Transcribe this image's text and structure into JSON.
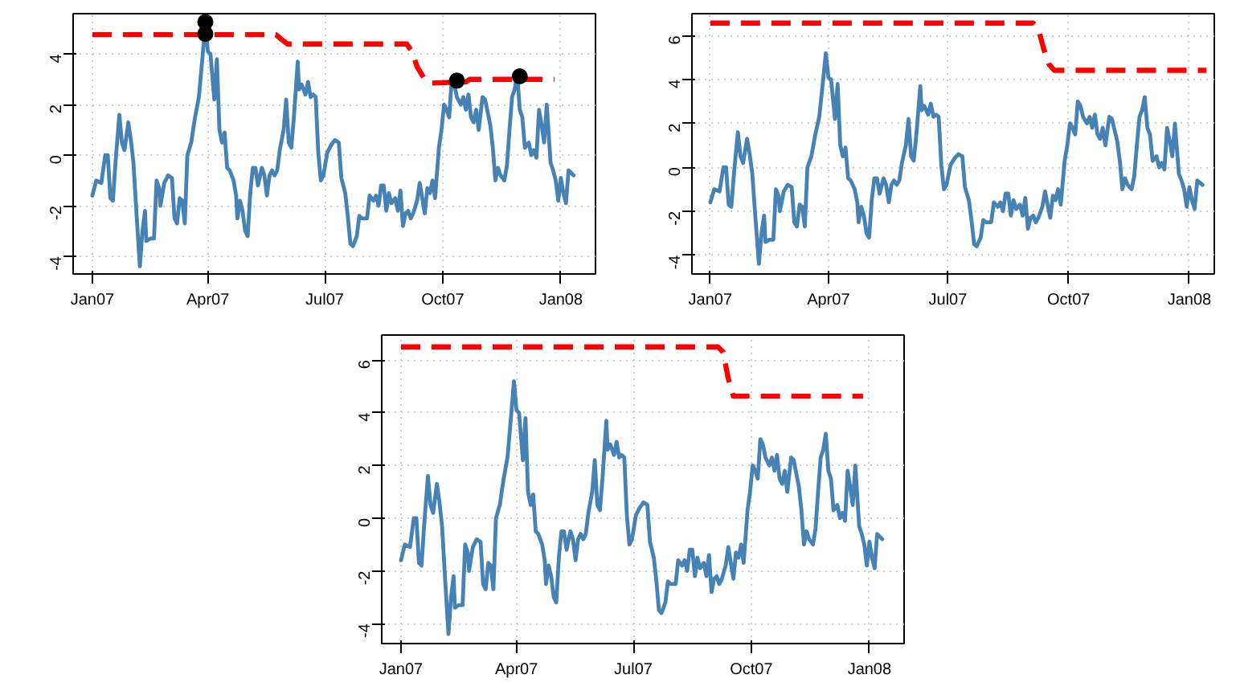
{
  "chart_data": [
    {
      "type": "line",
      "line_style": "solid",
      "grid": true,
      "x": [
        "2007-01-01",
        "2007-01-04",
        "2007-01-08",
        "2007-01-11",
        "2007-01-13",
        "2007-01-15",
        "2007-01-17",
        "2007-01-19",
        "2007-01-22",
        "2007-01-24",
        "2007-01-26",
        "2007-01-29",
        "2007-01-31",
        "2007-02-02",
        "2007-02-04",
        "2007-02-07",
        "2007-02-09",
        "2007-02-11",
        "2007-02-12",
        "2007-02-15",
        "2007-02-18",
        "2007-02-20",
        "2007-02-22",
        "2007-02-23",
        "2007-02-26",
        "2007-03-01",
        "2007-03-04",
        "2007-03-06",
        "2007-03-08",
        "2007-03-10",
        "2007-03-12",
        "2007-03-14",
        "2007-03-16",
        "2007-03-19",
        "2007-03-22",
        "2007-03-25",
        "2007-03-28",
        "2007-03-30",
        "2007-04-01",
        "2007-04-03",
        "2007-04-04",
        "2007-04-06",
        "2007-04-08",
        "2007-04-10",
        "2007-04-12",
        "2007-04-14",
        "2007-04-16",
        "2007-04-18",
        "2007-04-21",
        "2007-04-23",
        "2007-04-24",
        "2007-04-26",
        "2007-04-28",
        "2007-04-30",
        "2007-05-02",
        "2007-05-04",
        "2007-05-06",
        "2007-05-08",
        "2007-05-10",
        "2007-05-13",
        "2007-05-15",
        "2007-05-17",
        "2007-05-19",
        "2007-05-21",
        "2007-05-23",
        "2007-05-25",
        "2007-05-27",
        "2007-05-30",
        "2007-06-01",
        "2007-06-03",
        "2007-06-05",
        "2007-06-07",
        "2007-06-10",
        "2007-06-11",
        "2007-06-13",
        "2007-06-16",
        "2007-06-18",
        "2007-06-20",
        "2007-06-22",
        "2007-06-24",
        "2007-06-26",
        "2007-06-28",
        "2007-06-30",
        "2007-07-03",
        "2007-07-06",
        "2007-07-09",
        "2007-07-12",
        "2007-07-14",
        "2007-07-17",
        "2007-07-19",
        "2007-07-21",
        "2007-07-23",
        "2007-07-26",
        "2007-07-28",
        "2007-07-30",
        "2007-08-01",
        "2007-08-03",
        "2007-08-05",
        "2007-08-08",
        "2007-08-10",
        "2007-08-12",
        "2007-08-14",
        "2007-08-16",
        "2007-08-18",
        "2007-08-20",
        "2007-08-22",
        "2007-08-25",
        "2007-08-27",
        "2007-08-29",
        "2007-08-31",
        "2007-09-02",
        "2007-09-04",
        "2007-09-06",
        "2007-09-08",
        "2007-09-11",
        "2007-09-13",
        "2007-09-15",
        "2007-09-17",
        "2007-09-19",
        "2007-09-21",
        "2007-09-23",
        "2007-09-25",
        "2007-09-28",
        "2007-09-30",
        "2007-10-02",
        "2007-10-04",
        "2007-10-06",
        "2007-10-08",
        "2007-10-10",
        "2007-10-12",
        "2007-10-15",
        "2007-10-17",
        "2007-10-19",
        "2007-10-21",
        "2007-10-23",
        "2007-10-25",
        "2007-10-27",
        "2007-10-29",
        "2007-11-01",
        "2007-11-03",
        "2007-11-05",
        "2007-11-07",
        "2007-11-09",
        "2007-11-11",
        "2007-11-13",
        "2007-11-15",
        "2007-11-18",
        "2007-11-20",
        "2007-11-22",
        "2007-11-24",
        "2007-11-26",
        "2007-11-28",
        "2007-11-30",
        "2007-12-02",
        "2007-12-04",
        "2007-12-07",
        "2007-12-09",
        "2007-12-11",
        "2007-12-13",
        "2007-12-15",
        "2007-12-17",
        "2007-12-19",
        "2007-12-21",
        "2007-12-24",
        "2007-12-26",
        "2007-12-28",
        "2007-12-30",
        "2008-01-01",
        "2008-01-03",
        "2008-01-05",
        "2008-01-07",
        "2008-01-11"
      ],
      "series": [
        {
          "color": "#4682b4",
          "values": [
            -1.6,
            -1.0,
            -1.1,
            0.0,
            0.0,
            -1.7,
            -1.8,
            -0.3,
            1.6,
            0.5,
            0.2,
            1.3,
            0.6,
            -0.3,
            -2.0,
            -4.4,
            -3.0,
            -2.2,
            -3.4,
            -3.3,
            -3.3,
            -1.0,
            -1.3,
            -2.0,
            -1.1,
            -0.8,
            -0.9,
            -2.5,
            -2.7,
            -1.7,
            -1.8,
            -2.7,
            0.0,
            0.5,
            1.5,
            2.3,
            4.0,
            5.2,
            4.1,
            4.0,
            3.4,
            2.2,
            3.8,
            1.0,
            0.5,
            0.9,
            -0.5,
            -0.6,
            -1.0,
            -1.6,
            -2.5,
            -1.8,
            -2.2,
            -3.0,
            -3.2,
            -1.5,
            -0.5,
            -0.5,
            -1.2,
            -0.5,
            -0.8,
            -1.6,
            -0.8,
            -0.6,
            -0.8,
            -0.6,
            0.2,
            1.0,
            2.2,
            0.5,
            0.3,
            1.5,
            3.7,
            2.6,
            2.8,
            2.4,
            2.9,
            2.3,
            2.4,
            2.3,
            0.1,
            -1.0,
            -0.8,
            0.1,
            0.4,
            0.6,
            0.5,
            -0.9,
            -1.5,
            -2.4,
            -3.5,
            -3.6,
            -3.2,
            -2.4,
            -2.5,
            -2.5,
            -2.5,
            -1.6,
            -1.8,
            -1.6,
            -2.0,
            -1.2,
            -1.2,
            -2.2,
            -1.5,
            -1.9,
            -1.7,
            -2.2,
            -1.4,
            -2.8,
            -2.3,
            -2.2,
            -2.5,
            -2.3,
            -1.8,
            -1.1,
            -1.7,
            -2.3,
            -1.3,
            -1.5,
            -1.0,
            -1.7,
            0.3,
            1.0,
            2.0,
            1.8,
            1.5,
            3.0,
            2.8,
            2.3,
            2.0,
            2.3,
            1.8,
            2.4,
            1.5,
            1.3,
            1.8,
            1.0,
            2.3,
            2.2,
            1.7,
            1.2,
            0.3,
            -1.0,
            -0.5,
            -0.8,
            -1.0,
            -0.4,
            1.0,
            2.3,
            2.6,
            3.2,
            1.8,
            1.5,
            0.3,
            0.5,
            0.0,
            0.2,
            -0.1,
            1.8,
            1.2,
            0.5,
            2.0,
            -0.3,
            -0.6,
            -1.0,
            -1.8,
            -0.9,
            -1.5,
            -1.9,
            -0.6,
            -0.8
          ]
        },
        {
          "color": "#ff0000",
          "line_style": "dashed",
          "x": [
            "2007-01-01",
            "2007-05-24",
            "2007-05-28",
            "2007-06-02",
            "2007-09-03",
            "2007-09-07",
            "2007-09-11",
            "2007-09-17",
            "2007-09-21",
            "2007-10-19",
            "2007-10-22",
            "2007-12-27"
          ],
          "values": [
            4.77,
            4.77,
            4.6,
            4.4,
            4.4,
            4.1,
            3.5,
            3.0,
            2.85,
            2.9,
            3.0,
            3.0
          ]
        },
        {
          "type": "scatter",
          "marker": "circle",
          "color": "#000000",
          "x": [
            "2007-03-30",
            "2007-03-30",
            "2007-10-12",
            "2007-11-30"
          ],
          "values": [
            5.27,
            4.8,
            2.95,
            3.12
          ]
        }
      ],
      "xlim": [
        "2006-12-17",
        "2008-01-28"
      ],
      "ylim": [
        -4.7,
        5.6
      ],
      "xticks": [
        {
          "value": "2007-01-01",
          "label": "Jan07"
        },
        {
          "value": "2007-04-01",
          "label": "Apr07"
        },
        {
          "value": "2007-07-01",
          "label": "Jul07"
        },
        {
          "value": "2007-10-01",
          "label": "Oct07"
        },
        {
          "value": "2008-01-01",
          "label": "Jan08"
        }
      ],
      "yticks": [
        -4,
        -2,
        0,
        2,
        4
      ]
    },
    {
      "type": "line",
      "line_style": "solid",
      "grid": true,
      "x": [
        "2007-01-01",
        "2007-01-04",
        "2007-01-08",
        "2007-01-11",
        "2007-01-13",
        "2007-01-15",
        "2007-01-17",
        "2007-01-19",
        "2007-01-22",
        "2007-01-24",
        "2007-01-26",
        "2007-01-29",
        "2007-01-31",
        "2007-02-02",
        "2007-02-04",
        "2007-02-07",
        "2007-02-09",
        "2007-02-11",
        "2007-02-12",
        "2007-02-15",
        "2007-02-18",
        "2007-02-20",
        "2007-02-22",
        "2007-02-23",
        "2007-02-26",
        "2007-03-01",
        "2007-03-04",
        "2007-03-06",
        "2007-03-08",
        "2007-03-10",
        "2007-03-12",
        "2007-03-14",
        "2007-03-16",
        "2007-03-19",
        "2007-03-22",
        "2007-03-25",
        "2007-03-28",
        "2007-03-30",
        "2007-04-01",
        "2007-04-03",
        "2007-04-04",
        "2007-04-06",
        "2007-04-08",
        "2007-04-10",
        "2007-04-12",
        "2007-04-14",
        "2007-04-16",
        "2007-04-18",
        "2007-04-21",
        "2007-04-23",
        "2007-04-24",
        "2007-04-26",
        "2007-04-28",
        "2007-04-30",
        "2007-05-02",
        "2007-05-04",
        "2007-05-06",
        "2007-05-08",
        "2007-05-10",
        "2007-05-13",
        "2007-05-15",
        "2007-05-17",
        "2007-05-19",
        "2007-05-21",
        "2007-05-23",
        "2007-05-25",
        "2007-05-27",
        "2007-05-30",
        "2007-06-01",
        "2007-06-03",
        "2007-06-05",
        "2007-06-07",
        "2007-06-10",
        "2007-06-11",
        "2007-06-13",
        "2007-06-16",
        "2007-06-18",
        "2007-06-20",
        "2007-06-22",
        "2007-06-24",
        "2007-06-26",
        "2007-06-28",
        "2007-06-30",
        "2007-07-03",
        "2007-07-06",
        "2007-07-09",
        "2007-07-12",
        "2007-07-14",
        "2007-07-17",
        "2007-07-19",
        "2007-07-21",
        "2007-07-23",
        "2007-07-26",
        "2007-07-28",
        "2007-07-30",
        "2007-08-01",
        "2007-08-03",
        "2007-08-05",
        "2007-08-08",
        "2007-08-10",
        "2007-08-12",
        "2007-08-14",
        "2007-08-16",
        "2007-08-18",
        "2007-08-20",
        "2007-08-22",
        "2007-08-25",
        "2007-08-27",
        "2007-08-29",
        "2007-08-31",
        "2007-09-02",
        "2007-09-04",
        "2007-09-06",
        "2007-09-08",
        "2007-09-11",
        "2007-09-13",
        "2007-09-15",
        "2007-09-17",
        "2007-09-19",
        "2007-09-21",
        "2007-09-23",
        "2007-09-25",
        "2007-09-28",
        "2007-09-30",
        "2007-10-02",
        "2007-10-04",
        "2007-10-06",
        "2007-10-08",
        "2007-10-10",
        "2007-10-12",
        "2007-10-15",
        "2007-10-17",
        "2007-10-19",
        "2007-10-21",
        "2007-10-23",
        "2007-10-25",
        "2007-10-27",
        "2007-10-29",
        "2007-11-01",
        "2007-11-03",
        "2007-11-05",
        "2007-11-07",
        "2007-11-09",
        "2007-11-11",
        "2007-11-13",
        "2007-11-15",
        "2007-11-18",
        "2007-11-20",
        "2007-11-22",
        "2007-11-24",
        "2007-11-26",
        "2007-11-28",
        "2007-11-30",
        "2007-12-02",
        "2007-12-04",
        "2007-12-07",
        "2007-12-09",
        "2007-12-11",
        "2007-12-13",
        "2007-12-15",
        "2007-12-17",
        "2007-12-19",
        "2007-12-21",
        "2007-12-24",
        "2007-12-26",
        "2007-12-28",
        "2007-12-30",
        "2008-01-01",
        "2008-01-03",
        "2008-01-05",
        "2008-01-07",
        "2008-01-11"
      ],
      "series": [
        {
          "color": "#4682b4",
          "values": [
            -1.6,
            -1.0,
            -1.1,
            0.0,
            0.0,
            -1.7,
            -1.8,
            -0.3,
            1.6,
            0.5,
            0.2,
            1.3,
            0.6,
            -0.3,
            -2.0,
            -4.4,
            -3.0,
            -2.2,
            -3.4,
            -3.3,
            -3.3,
            -1.0,
            -1.3,
            -2.0,
            -1.1,
            -0.8,
            -0.9,
            -2.5,
            -2.7,
            -1.7,
            -1.8,
            -2.7,
            0.0,
            0.5,
            1.5,
            2.3,
            4.0,
            5.2,
            4.1,
            4.0,
            3.4,
            2.2,
            3.8,
            1.0,
            0.5,
            0.9,
            -0.5,
            -0.6,
            -1.0,
            -1.6,
            -2.5,
            -1.8,
            -2.2,
            -3.0,
            -3.2,
            -1.5,
            -0.5,
            -0.5,
            -1.2,
            -0.5,
            -0.8,
            -1.6,
            -0.8,
            -0.6,
            -0.8,
            -0.6,
            0.2,
            1.0,
            2.2,
            0.5,
            0.3,
            1.5,
            3.7,
            2.6,
            2.8,
            2.4,
            2.9,
            2.3,
            2.4,
            2.3,
            0.1,
            -1.0,
            -0.8,
            0.1,
            0.4,
            0.6,
            0.5,
            -0.9,
            -1.5,
            -2.4,
            -3.5,
            -3.6,
            -3.2,
            -2.4,
            -2.5,
            -2.5,
            -2.5,
            -1.6,
            -1.8,
            -1.6,
            -2.0,
            -1.2,
            -1.2,
            -2.2,
            -1.5,
            -1.9,
            -1.7,
            -2.2,
            -1.4,
            -2.8,
            -2.3,
            -2.2,
            -2.5,
            -2.3,
            -1.8,
            -1.1,
            -1.7,
            -2.3,
            -1.3,
            -1.5,
            -1.0,
            -1.7,
            0.3,
            1.0,
            2.0,
            1.8,
            1.5,
            3.0,
            2.8,
            2.3,
            2.0,
            2.3,
            1.8,
            2.4,
            1.5,
            1.3,
            1.8,
            1.0,
            2.3,
            2.2,
            1.7,
            1.2,
            0.3,
            -1.0,
            -0.5,
            -0.8,
            -1.0,
            -0.4,
            1.0,
            2.3,
            2.6,
            3.2,
            1.8,
            1.5,
            0.3,
            0.5,
            0.0,
            0.2,
            -0.1,
            1.8,
            1.2,
            0.5,
            2.0,
            -0.3,
            -0.6,
            -1.0,
            -1.8,
            -0.9,
            -1.5,
            -1.9,
            -0.6,
            -0.8
          ]
        },
        {
          "color": "#ff0000",
          "line_style": "dashed",
          "x": [
            "2007-01-01",
            "2007-09-04",
            "2007-09-08",
            "2007-09-12",
            "2007-09-16",
            "2007-09-20",
            "2008-01-14"
          ],
          "values": [
            6.57,
            6.57,
            6.3,
            5.4,
            4.7,
            4.42,
            4.42
          ]
        }
      ],
      "xlim": [
        "2006-12-18",
        "2008-01-20"
      ],
      "ylim": [
        -4.86,
        7.0
      ],
      "xticks": [
        {
          "value": "2007-01-01",
          "label": "Jan07"
        },
        {
          "value": "2007-04-01",
          "label": "Apr07"
        },
        {
          "value": "2007-07-01",
          "label": "Jul07"
        },
        {
          "value": "2007-10-01",
          "label": "Oct07"
        },
        {
          "value": "2008-01-01",
          "label": "Jan08"
        }
      ],
      "yticks": [
        -4,
        -2,
        0,
        2,
        4,
        6
      ]
    },
    {
      "type": "line",
      "line_style": "solid",
      "grid": true,
      "x": [
        "2007-01-01",
        "2007-01-04",
        "2007-01-08",
        "2007-01-11",
        "2007-01-13",
        "2007-01-15",
        "2007-01-17",
        "2007-01-19",
        "2007-01-22",
        "2007-01-24",
        "2007-01-26",
        "2007-01-29",
        "2007-01-31",
        "2007-02-02",
        "2007-02-04",
        "2007-02-07",
        "2007-02-09",
        "2007-02-11",
        "2007-02-12",
        "2007-02-15",
        "2007-02-18",
        "2007-02-20",
        "2007-02-22",
        "2007-02-23",
        "2007-02-26",
        "2007-03-01",
        "2007-03-04",
        "2007-03-06",
        "2007-03-08",
        "2007-03-10",
        "2007-03-12",
        "2007-03-14",
        "2007-03-16",
        "2007-03-19",
        "2007-03-22",
        "2007-03-25",
        "2007-03-28",
        "2007-03-30",
        "2007-04-01",
        "2007-04-03",
        "2007-04-04",
        "2007-04-06",
        "2007-04-08",
        "2007-04-10",
        "2007-04-12",
        "2007-04-14",
        "2007-04-16",
        "2007-04-18",
        "2007-04-21",
        "2007-04-23",
        "2007-04-24",
        "2007-04-26",
        "2007-04-28",
        "2007-04-30",
        "2007-05-02",
        "2007-05-04",
        "2007-05-06",
        "2007-05-08",
        "2007-05-10",
        "2007-05-13",
        "2007-05-15",
        "2007-05-17",
        "2007-05-19",
        "2007-05-21",
        "2007-05-23",
        "2007-05-25",
        "2007-05-27",
        "2007-05-30",
        "2007-06-01",
        "2007-06-03",
        "2007-06-05",
        "2007-06-07",
        "2007-06-10",
        "2007-06-11",
        "2007-06-13",
        "2007-06-16",
        "2007-06-18",
        "2007-06-20",
        "2007-06-22",
        "2007-06-24",
        "2007-06-26",
        "2007-06-28",
        "2007-06-30",
        "2007-07-03",
        "2007-07-06",
        "2007-07-09",
        "2007-07-12",
        "2007-07-14",
        "2007-07-17",
        "2007-07-19",
        "2007-07-21",
        "2007-07-23",
        "2007-07-26",
        "2007-07-28",
        "2007-07-30",
        "2007-08-01",
        "2007-08-03",
        "2007-08-05",
        "2007-08-08",
        "2007-08-10",
        "2007-08-12",
        "2007-08-14",
        "2007-08-16",
        "2007-08-18",
        "2007-08-20",
        "2007-08-22",
        "2007-08-25",
        "2007-08-27",
        "2007-08-29",
        "2007-08-31",
        "2007-09-02",
        "2007-09-04",
        "2007-09-06",
        "2007-09-08",
        "2007-09-11",
        "2007-09-13",
        "2007-09-15",
        "2007-09-17",
        "2007-09-19",
        "2007-09-21",
        "2007-09-23",
        "2007-09-25",
        "2007-09-28",
        "2007-09-30",
        "2007-10-02",
        "2007-10-04",
        "2007-10-06",
        "2007-10-08",
        "2007-10-10",
        "2007-10-12",
        "2007-10-15",
        "2007-10-17",
        "2007-10-19",
        "2007-10-21",
        "2007-10-23",
        "2007-10-25",
        "2007-10-27",
        "2007-10-29",
        "2007-11-01",
        "2007-11-03",
        "2007-11-05",
        "2007-11-07",
        "2007-11-09",
        "2007-11-11",
        "2007-11-13",
        "2007-11-15",
        "2007-11-18",
        "2007-11-20",
        "2007-11-22",
        "2007-11-24",
        "2007-11-26",
        "2007-11-28",
        "2007-11-30",
        "2007-12-02",
        "2007-12-04",
        "2007-12-07",
        "2007-12-09",
        "2007-12-11",
        "2007-12-13",
        "2007-12-15",
        "2007-12-17",
        "2007-12-19",
        "2007-12-21",
        "2007-12-24",
        "2007-12-26",
        "2007-12-28",
        "2007-12-30",
        "2008-01-01",
        "2008-01-03",
        "2008-01-05",
        "2008-01-07",
        "2008-01-11"
      ],
      "series": [
        {
          "color": "#4682b4",
          "values": [
            -1.6,
            -1.0,
            -1.1,
            0.0,
            0.0,
            -1.7,
            -1.8,
            -0.3,
            1.6,
            0.5,
            0.2,
            1.3,
            0.6,
            -0.3,
            -2.0,
            -4.4,
            -3.0,
            -2.2,
            -3.4,
            -3.3,
            -3.3,
            -1.0,
            -1.3,
            -2.0,
            -1.1,
            -0.8,
            -0.9,
            -2.5,
            -2.7,
            -1.7,
            -1.8,
            -2.7,
            0.0,
            0.5,
            1.5,
            2.3,
            4.0,
            5.2,
            4.1,
            4.0,
            3.4,
            2.2,
            3.8,
            1.0,
            0.5,
            0.9,
            -0.5,
            -0.6,
            -1.0,
            -1.6,
            -2.5,
            -1.8,
            -2.2,
            -3.0,
            -3.2,
            -1.5,
            -0.5,
            -0.5,
            -1.2,
            -0.5,
            -0.8,
            -1.6,
            -0.8,
            -0.6,
            -0.8,
            -0.6,
            0.2,
            1.0,
            2.2,
            0.5,
            0.3,
            1.5,
            3.7,
            2.6,
            2.8,
            2.4,
            2.9,
            2.3,
            2.4,
            2.3,
            0.1,
            -1.0,
            -0.8,
            0.1,
            0.4,
            0.6,
            0.5,
            -0.9,
            -1.5,
            -2.4,
            -3.5,
            -3.6,
            -3.2,
            -2.4,
            -2.5,
            -2.5,
            -2.5,
            -1.6,
            -1.8,
            -1.6,
            -2.0,
            -1.2,
            -1.2,
            -2.2,
            -1.5,
            -1.9,
            -1.7,
            -2.2,
            -1.4,
            -2.8,
            -2.3,
            -2.2,
            -2.5,
            -2.3,
            -1.8,
            -1.1,
            -1.7,
            -2.3,
            -1.3,
            -1.5,
            -1.0,
            -1.7,
            0.3,
            1.0,
            2.0,
            1.8,
            1.5,
            3.0,
            2.8,
            2.3,
            2.0,
            2.3,
            1.8,
            2.4,
            1.5,
            1.3,
            1.8,
            1.0,
            2.3,
            2.2,
            1.7,
            1.2,
            0.3,
            -1.0,
            -0.5,
            -0.8,
            -1.0,
            -0.4,
            1.0,
            2.3,
            2.6,
            3.2,
            1.8,
            1.5,
            0.3,
            0.5,
            0.0,
            0.2,
            -0.1,
            1.8,
            1.2,
            0.5,
            2.0,
            -0.3,
            -0.6,
            -1.0,
            -1.8,
            -0.9,
            -1.5,
            -1.9,
            -0.6,
            -0.8
          ]
        },
        {
          "color": "#ff0000",
          "line_style": "dashed",
          "x": [
            "2007-01-01",
            "2007-09-05",
            "2007-09-09",
            "2007-09-13",
            "2007-09-17",
            "2007-12-27"
          ],
          "values": [
            6.5,
            6.5,
            6.3,
            5.3,
            4.63,
            4.63
          ]
        }
      ],
      "xlim": [
        "2006-12-17",
        "2008-01-28"
      ],
      "ylim": [
        -4.76,
        6.95
      ],
      "xticks": [
        {
          "value": "2007-01-01",
          "label": "Jan07"
        },
        {
          "value": "2007-04-01",
          "label": "Apr07"
        },
        {
          "value": "2007-07-01",
          "label": "Jul07"
        },
        {
          "value": "2007-10-01",
          "label": "Oct07"
        },
        {
          "value": "2008-01-01",
          "label": "Jan08"
        }
      ],
      "yticks": [
        -4,
        -2,
        0,
        2,
        4,
        6
      ]
    }
  ]
}
